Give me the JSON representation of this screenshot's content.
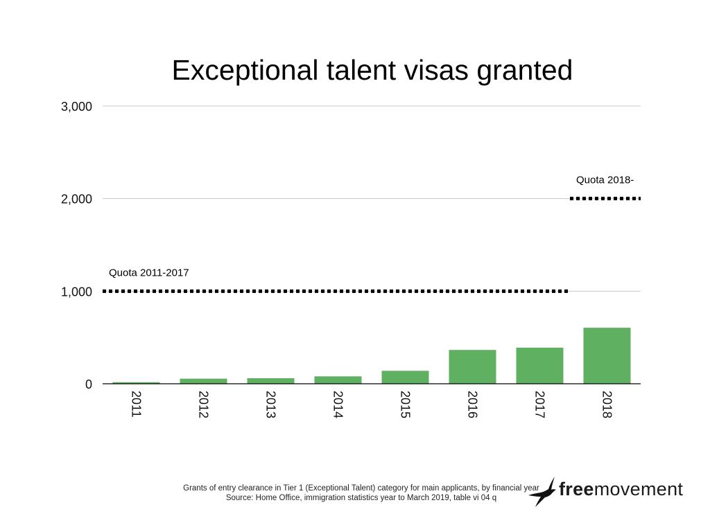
{
  "chart_data": {
    "type": "bar",
    "title": "Exceptional talent visas granted",
    "categories": [
      "2011",
      "2012",
      "2013",
      "2014",
      "2015",
      "2016",
      "2017",
      "2018"
    ],
    "series": [
      {
        "values": [
          17,
          55,
          60,
          80,
          140,
          365,
          390,
          605
        ],
        "color": "#5fb060"
      }
    ],
    "ylim": [
      0,
      3000
    ],
    "yticks": [
      0,
      1000,
      2000,
      3000
    ],
    "ytick_labels": [
      "0",
      "1,000",
      "2,000",
      "3,000"
    ],
    "grid": true,
    "reference_lines": [
      {
        "label": "Quota 2011-2017",
        "value": 1000,
        "from": "2011",
        "to": "2017"
      },
      {
        "label": "Quota 2018-",
        "value": 2000,
        "from": "2018",
        "to": "2018"
      }
    ],
    "bar_color": "#5fb060"
  },
  "footnote": {
    "line1": "Grants of entry clearance in Tier 1 (Exceptional Talent) category for main applicants, by financial year",
    "line2": "Source: Home Office, immigration statistics year to March 2019, table vi 04 q"
  },
  "logo": {
    "bold": "free",
    "regular": "movement",
    "icon": "bird-icon"
  }
}
